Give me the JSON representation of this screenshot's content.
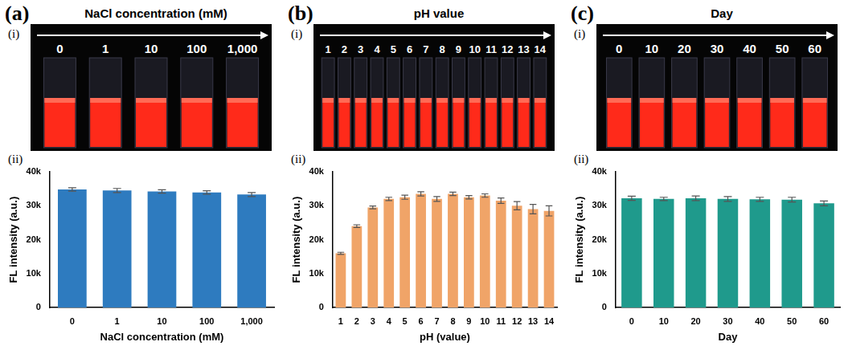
{
  "chart_data": [
    {
      "type": "bar",
      "label": "(ii)",
      "xlabel": "NaCl concentration (mM)",
      "ylabel": "FL intensity (a.u.)",
      "categories": [
        "0",
        "1",
        "10",
        "100",
        "1,000"
      ],
      "values": [
        34800,
        34500,
        34200,
        33900,
        33300
      ],
      "errors": [
        500,
        600,
        500,
        500,
        600
      ],
      "color": "#2e7bbf",
      "ylim": [
        0,
        40000
      ],
      "yticks": [
        0,
        {
          "value": 10000,
          "label": "10k"
        },
        {
          "value": 20000,
          "label": "20k"
        },
        {
          "value": 30000,
          "label": "30k"
        },
        {
          "value": 40000,
          "label": "40k"
        }
      ],
      "grid": false
    },
    {
      "type": "bar",
      "label": "(ii)",
      "xlabel": "pH (value)",
      "ylabel": "FL intensity (a.u.)",
      "categories": [
        "1",
        "2",
        "3",
        "4",
        "5",
        "6",
        "7",
        "8",
        "9",
        "10",
        "11",
        "12",
        "13",
        "14"
      ],
      "values": [
        16000,
        24000,
        29500,
        32000,
        32500,
        33500,
        32000,
        33500,
        32500,
        33000,
        31500,
        30000,
        29000,
        28500
      ],
      "errors": [
        300,
        400,
        400,
        500,
        600,
        600,
        700,
        500,
        500,
        500,
        800,
        1200,
        1400,
        1500
      ],
      "color": "#f0a468",
      "ylim": [
        0,
        40000
      ],
      "yticks": [
        0,
        {
          "value": 10000,
          "label": "10k"
        },
        {
          "value": 20000,
          "label": "20k"
        },
        {
          "value": 30000,
          "label": "30k"
        },
        {
          "value": 40000,
          "label": "40k"
        }
      ],
      "grid": false
    },
    {
      "type": "bar",
      "label": "(ii)",
      "xlabel": "Day",
      "ylabel": "FL intensity (a.u.)",
      "categories": [
        "0",
        "10",
        "20",
        "30",
        "40",
        "50",
        "60"
      ],
      "values": [
        32200,
        32000,
        32200,
        32000,
        31900,
        31800,
        30700
      ],
      "errors": [
        600,
        500,
        700,
        700,
        600,
        700,
        700
      ],
      "color": "#1f9a8c",
      "ylim": [
        0,
        40000
      ],
      "yticks": [
        0,
        {
          "value": 10000,
          "label": "10k"
        },
        {
          "value": 20000,
          "label": "20k"
        },
        {
          "value": 30000,
          "label": "30k"
        },
        {
          "value": 40000,
          "label": "40k"
        }
      ],
      "grid": false
    }
  ],
  "photos": [
    {
      "panel": "(a)",
      "label": "(i)",
      "title": "NaCl concentration (mM)",
      "vial_labels": [
        "0",
        "1",
        "10",
        "100",
        "1,000"
      ]
    },
    {
      "panel": "(b)",
      "label": "(i)",
      "title": "pH value",
      "vial_labels": [
        "1",
        "2",
        "3",
        "4",
        "5",
        "6",
        "7",
        "8",
        "9",
        "10",
        "11",
        "12",
        "13",
        "14"
      ]
    },
    {
      "panel": "(c)",
      "label": "(i)",
      "title": "Day",
      "vial_labels": [
        "0",
        "10",
        "20",
        "30",
        "40",
        "50",
        "60"
      ]
    }
  ]
}
